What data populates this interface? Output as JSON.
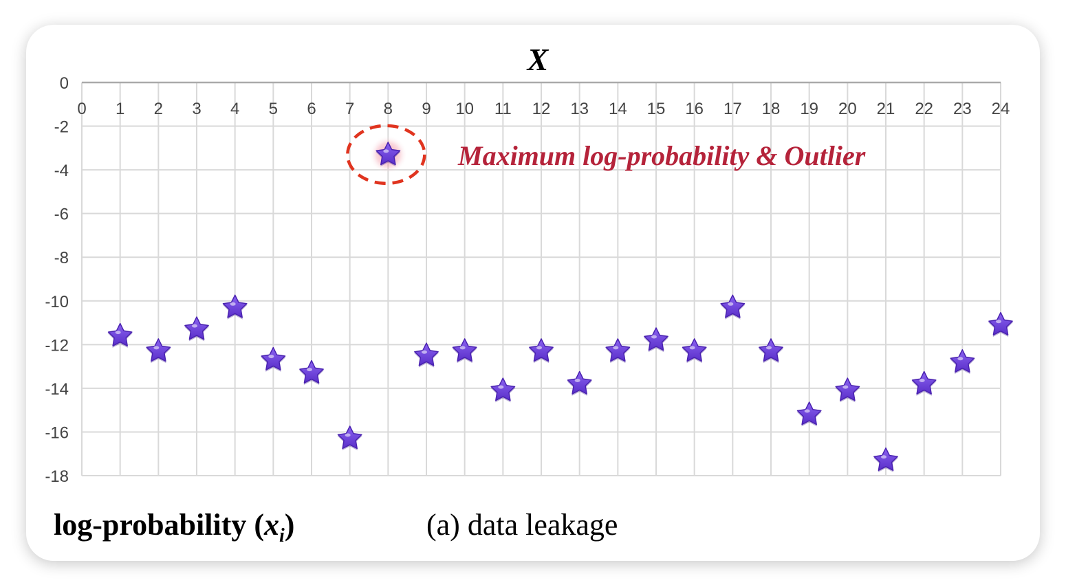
{
  "chart_data": {
    "type": "scatter",
    "title": "X",
    "ylabel": {
      "prefix": "log-probability (",
      "var": "x",
      "sub": "i",
      "suffix": ")"
    },
    "caption": "(a) data leakage",
    "annotation": "Maximum log-probability & Outlier",
    "x_ticks": [
      0,
      1,
      2,
      3,
      4,
      5,
      6,
      7,
      8,
      9,
      10,
      11,
      12,
      13,
      14,
      15,
      16,
      17,
      18,
      19,
      20,
      21,
      22,
      23,
      24
    ],
    "y_ticks": [
      0,
      -2,
      -4,
      -6,
      -8,
      -10,
      -12,
      -14,
      -16,
      -18
    ],
    "xlim": [
      0,
      24
    ],
    "ylim": [
      -18,
      0
    ],
    "grid": true,
    "marker": "star",
    "colors": {
      "marker": "#6a3ddc",
      "annotation": "#b5233a",
      "circle": "#e0341f",
      "grid": "#d9d9d9"
    },
    "outlier_index": 8,
    "points": [
      {
        "x": 1,
        "y": -11.6
      },
      {
        "x": 2,
        "y": -12.3
      },
      {
        "x": 3,
        "y": -11.3
      },
      {
        "x": 4,
        "y": -10.3
      },
      {
        "x": 5,
        "y": -12.7
      },
      {
        "x": 6,
        "y": -13.3
      },
      {
        "x": 7,
        "y": -16.3
      },
      {
        "x": 8,
        "y": -3.3
      },
      {
        "x": 9,
        "y": -12.5
      },
      {
        "x": 10,
        "y": -12.3
      },
      {
        "x": 11,
        "y": -14.1
      },
      {
        "x": 12,
        "y": -12.3
      },
      {
        "x": 13,
        "y": -13.8
      },
      {
        "x": 14,
        "y": -12.3
      },
      {
        "x": 15,
        "y": -11.8
      },
      {
        "x": 16,
        "y": -12.3
      },
      {
        "x": 17,
        "y": -10.3
      },
      {
        "x": 18,
        "y": -12.3
      },
      {
        "x": 19,
        "y": -15.2
      },
      {
        "x": 20,
        "y": -14.1
      },
      {
        "x": 21,
        "y": -17.3
      },
      {
        "x": 22,
        "y": -13.8
      },
      {
        "x": 23,
        "y": -12.8
      },
      {
        "x": 24,
        "y": -11.1
      }
    ]
  }
}
